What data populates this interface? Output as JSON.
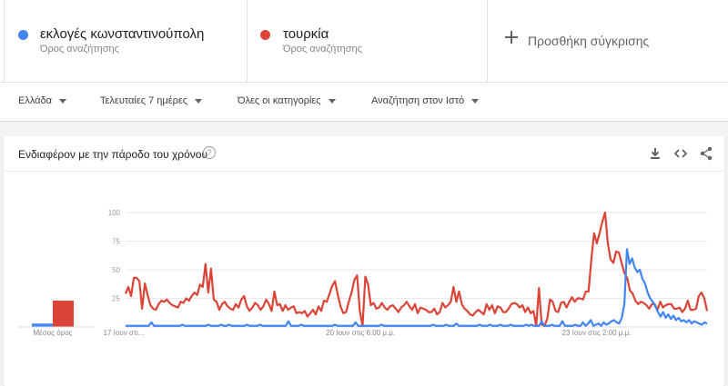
{
  "terms": [
    {
      "name": "εκλογές κωνσταντινούπολη",
      "subtitle": "Όρος αναζήτησης",
      "color": "#4285f4"
    },
    {
      "name": "τουρκία",
      "subtitle": "Όρος αναζήτησης",
      "color": "#db4437"
    }
  ],
  "add_comparison": "Προσθήκη σύγκρισης",
  "filters": {
    "region": "Ελλάδα",
    "time": "Τελευταίες 7 ημέρες",
    "category": "Όλες οι κατηγορίες",
    "search_type": "Αναζήτηση στον Ιστό"
  },
  "card": {
    "title": "Ενδιαφέρον με την πάροδο του χρόνου",
    "help_icon": "help-icon",
    "download_icon": "download-icon",
    "embed_icon": "embed-code-icon",
    "share_icon": "share-icon"
  },
  "chart_data": {
    "type": "line",
    "ylim": [
      0,
      100
    ],
    "y_ticks": [
      "100",
      "75",
      "50",
      "25"
    ],
    "x_tick_labels": [
      "17 Ιουν στι...",
      "20 Ιουν στις 6:00 μ.μ.",
      "23 Ιουν στις 2:00 μ.μ."
    ],
    "average_label": "Μέσος όρος",
    "average_values": {
      "εκλογές κωνσταντινούπολη": 3,
      "τουρκία": 23
    },
    "grid": true,
    "series": [
      {
        "name": "εκλογές κωνσταντινούπολη",
        "color": "#4285f4",
        "values": [
          1,
          1,
          1,
          1,
          1,
          1,
          1,
          1,
          1,
          1,
          4,
          1,
          1,
          1,
          1,
          1,
          1,
          1,
          1,
          1,
          1,
          1,
          2,
          1,
          1,
          1,
          1,
          1,
          1,
          1,
          1,
          1,
          2,
          1,
          1,
          1,
          1,
          2,
          1,
          1,
          2,
          1,
          1,
          1,
          1,
          1,
          1,
          2,
          1,
          1,
          1,
          1,
          2,
          1,
          1,
          1,
          1,
          1,
          1,
          1,
          1,
          1,
          1,
          5,
          1,
          1,
          1,
          1,
          2,
          1,
          1,
          1,
          1,
          1,
          1,
          1,
          1,
          1,
          1,
          1,
          1,
          2,
          1,
          1,
          1,
          1,
          1,
          1,
          1,
          4,
          1,
          1,
          1,
          1,
          1,
          1,
          1,
          1,
          1,
          2,
          1,
          1,
          1,
          1,
          1,
          1,
          1,
          1,
          1,
          1,
          1,
          1,
          1,
          1,
          1,
          1,
          1,
          1,
          1,
          2,
          1,
          1,
          1,
          1,
          2,
          1,
          1,
          1,
          3,
          1,
          1,
          1,
          1,
          1,
          1,
          1,
          1,
          2,
          1,
          1,
          1,
          2,
          1,
          1,
          1,
          2,
          1,
          1,
          1,
          2,
          1,
          1,
          1,
          1,
          1,
          2,
          1,
          2,
          1,
          1,
          1,
          5,
          1,
          1,
          1,
          2,
          1,
          1,
          1,
          5,
          1,
          1,
          1,
          1,
          2,
          1,
          1,
          4,
          1,
          3,
          6,
          1,
          2,
          3,
          1,
          4,
          2,
          3,
          5,
          6,
          4,
          3,
          8,
          20,
          68,
          55,
          60,
          52,
          48,
          50,
          42,
          38,
          30,
          25,
          22,
          18,
          13,
          9,
          13,
          8,
          11,
          7,
          10,
          6,
          8,
          5,
          6,
          4,
          6,
          3,
          5,
          4,
          3,
          2,
          4,
          3
        ]
      },
      {
        "name": "τουρκία",
        "color": "#db4437",
        "values": [
          29,
          35,
          27,
          43,
          43,
          40,
          16,
          38,
          28,
          19,
          16,
          15,
          20,
          23,
          22,
          24,
          21,
          19,
          18,
          17,
          22,
          21,
          25,
          23,
          27,
          30,
          28,
          37,
          35,
          55,
          30,
          51,
          24,
          22,
          15,
          20,
          22,
          18,
          16,
          15,
          20,
          17,
          24,
          27,
          18,
          14,
          17,
          21,
          19,
          15,
          18,
          24,
          20,
          14,
          31,
          19,
          20,
          14,
          19,
          15,
          17,
          18,
          12,
          13,
          12,
          14,
          9,
          12,
          15,
          11,
          18,
          14,
          23,
          22,
          29,
          36,
          40,
          28,
          18,
          12,
          13,
          22,
          30,
          41,
          45,
          14,
          1,
          44,
          37,
          19,
          21,
          16,
          17,
          21,
          17,
          15,
          18,
          19,
          16,
          13,
          17,
          19,
          22,
          18,
          15,
          20,
          12,
          17,
          16,
          15,
          13,
          13,
          16,
          11,
          13,
          21,
          17,
          19,
          22,
          35,
          22,
          31,
          20,
          16,
          14,
          11,
          10,
          13,
          15,
          13,
          11,
          20,
          15,
          19,
          12,
          18,
          17,
          13,
          13,
          16,
          20,
          21,
          20,
          17,
          19,
          13,
          17,
          12,
          14,
          1,
          34,
          2,
          1,
          7,
          24,
          22,
          14,
          13,
          21,
          22,
          17,
          22,
          26,
          22,
          25,
          25,
          24,
          31,
          31,
          59,
          82,
          73,
          82,
          92,
          100,
          73,
          59,
          56,
          66,
          65,
          56,
          47,
          43,
          32,
          29,
          23,
          20,
          22,
          21,
          19,
          16,
          20,
          20,
          15,
          22,
          17,
          19,
          20,
          20,
          16,
          16,
          17,
          13,
          16,
          23,
          15,
          15,
          16,
          27,
          30,
          25,
          14
        ]
      }
    ]
  }
}
